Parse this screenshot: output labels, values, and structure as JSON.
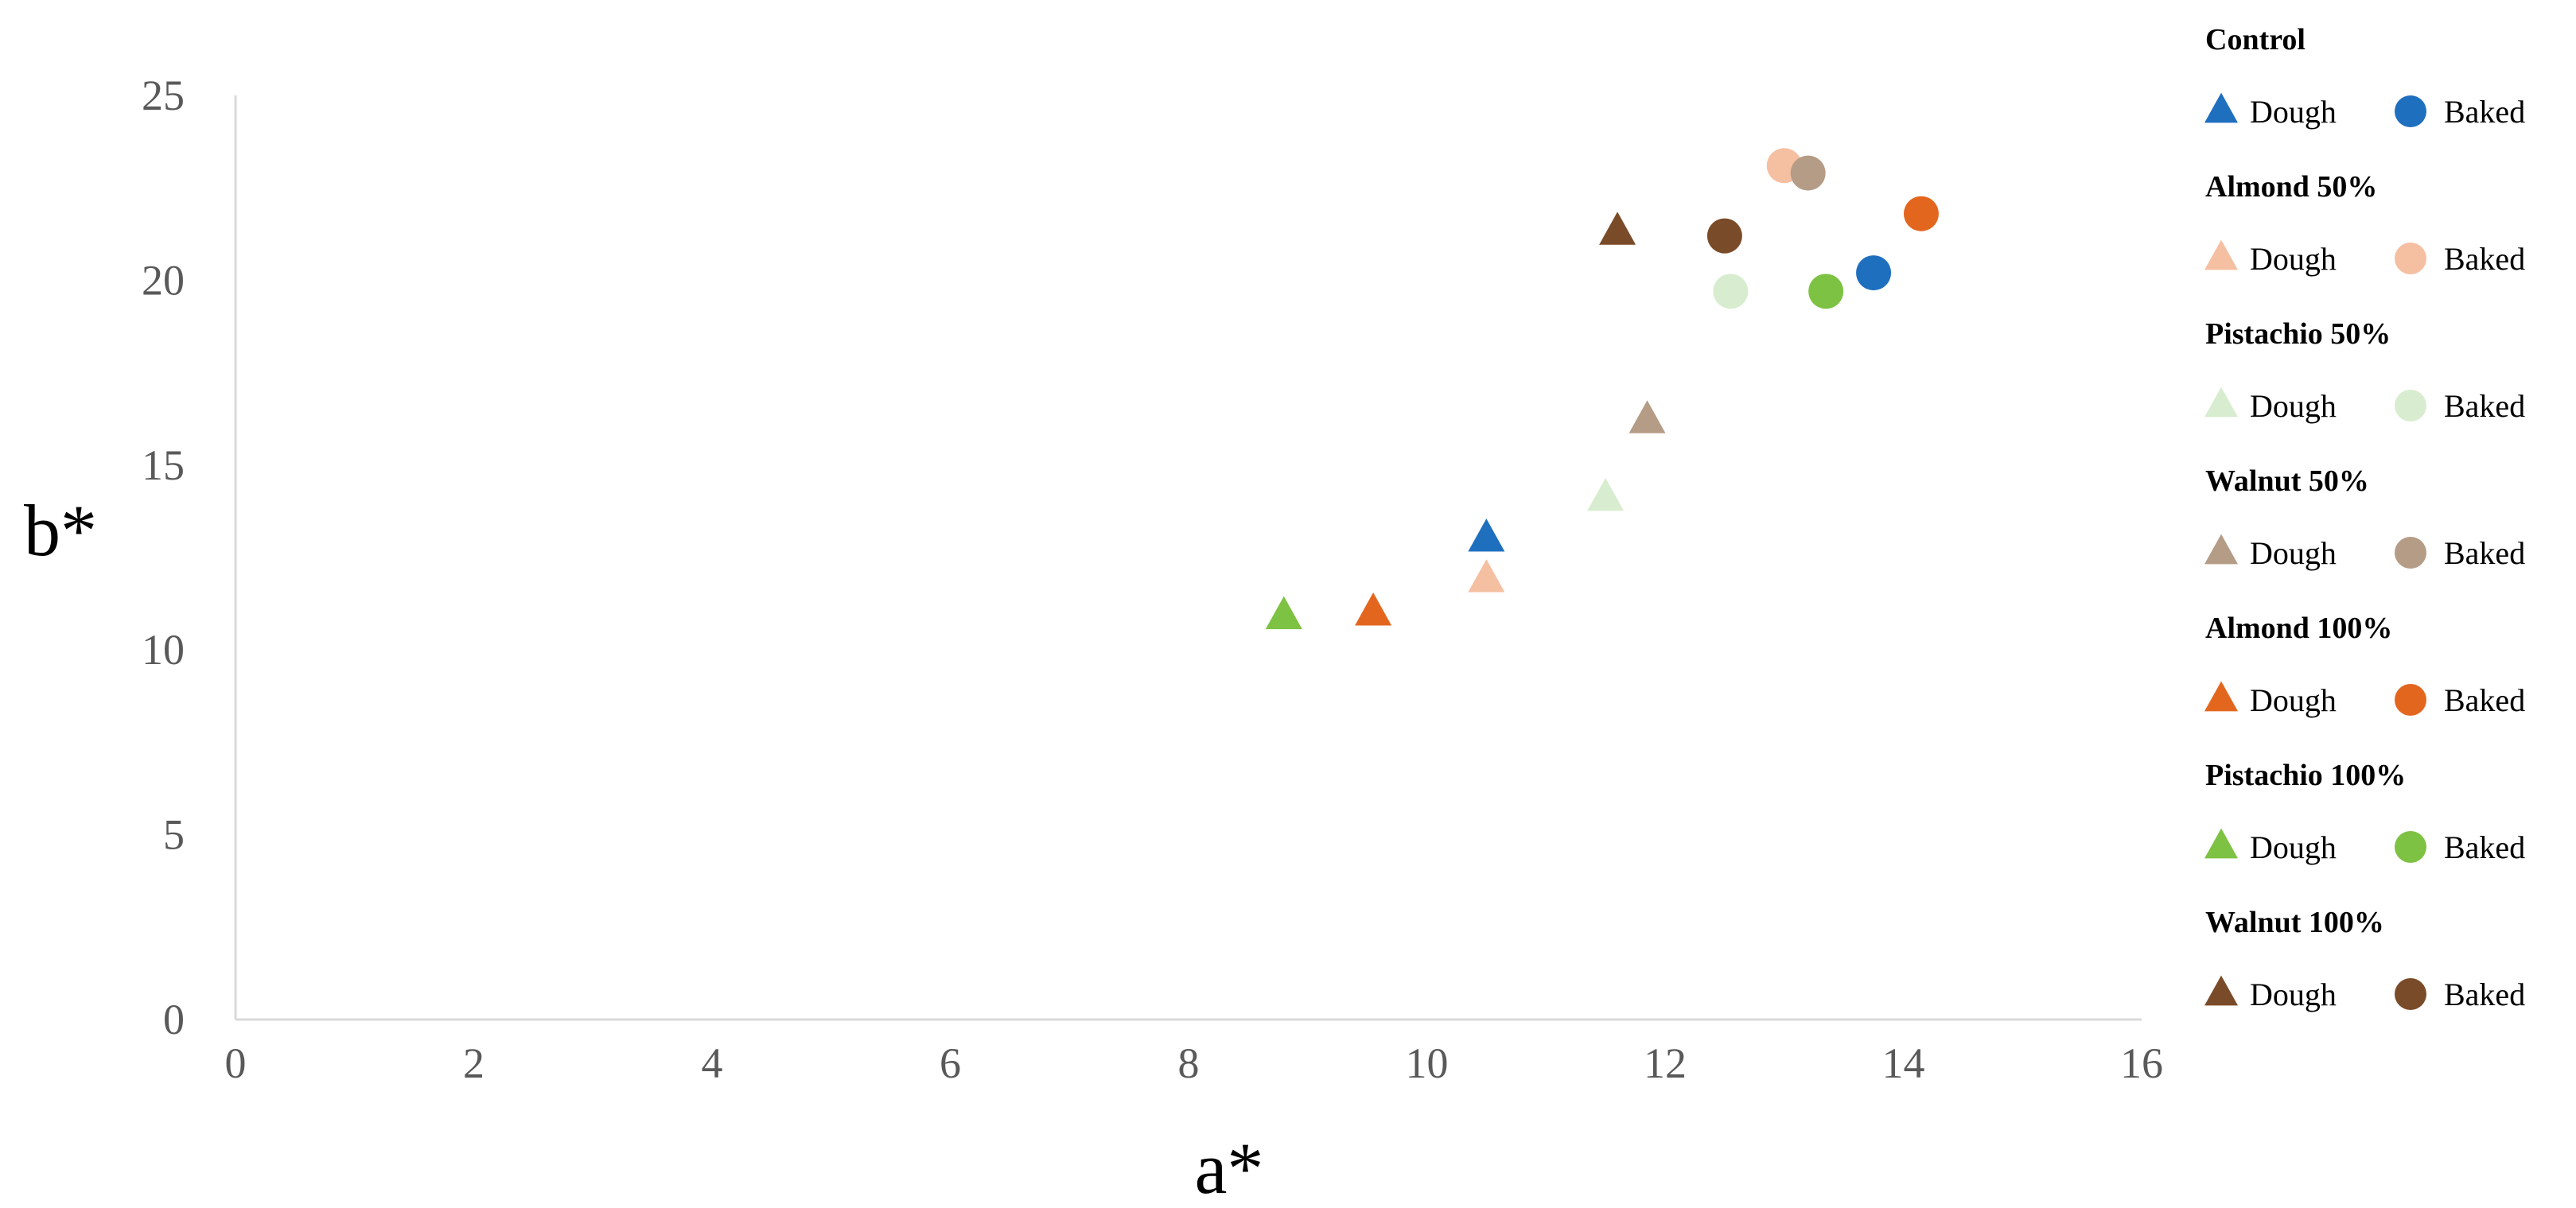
{
  "chart_data": {
    "type": "scatter",
    "xlabel": "a*",
    "ylabel": "b*",
    "xlim": [
      0,
      16
    ],
    "ylim": [
      0,
      25
    ],
    "x_ticks": [
      "0",
      "2",
      "4",
      "6",
      "8",
      "10",
      "12",
      "14",
      "16"
    ],
    "y_ticks": [
      "0",
      "5",
      "10",
      "15",
      "20",
      "25"
    ],
    "grid": false,
    "legend_position": "right",
    "marker_labels": {
      "dough": "Dough",
      "baked": "Baked"
    },
    "groups": [
      {
        "name": "Control",
        "color": "#1F6FBF",
        "dough": {
          "x": 10.5,
          "y": 13.0
        },
        "baked": {
          "x": 13.75,
          "y": 20.2
        }
      },
      {
        "name": "Almond 50%",
        "color": "#F5BFA1",
        "dough": {
          "x": 10.5,
          "y": 11.9
        },
        "baked": {
          "x": 13.0,
          "y": 23.1
        }
      },
      {
        "name": "Pistachio 50%",
        "color": "#D8EDCF",
        "dough": {
          "x": 11.5,
          "y": 14.1
        },
        "baked": {
          "x": 12.55,
          "y": 19.7
        }
      },
      {
        "name": "Walnut 50%",
        "color": "#B59C86",
        "dough": {
          "x": 11.85,
          "y": 16.2
        },
        "baked": {
          "x": 13.2,
          "y": 22.9
        }
      },
      {
        "name": "Almond 100%",
        "color": "#E3661E",
        "dough": {
          "x": 9.55,
          "y": 11.0
        },
        "baked": {
          "x": 14.15,
          "y": 21.8
        }
      },
      {
        "name": "Pistachio 100%",
        "color": "#7DC242",
        "dough": {
          "x": 8.8,
          "y": 10.9
        },
        "baked": {
          "x": 13.35,
          "y": 19.7
        }
      },
      {
        "name": "Walnut 100%",
        "color": "#7A4B28",
        "dough": {
          "x": 11.6,
          "y": 21.3
        },
        "baked": {
          "x": 12.5,
          "y": 21.2
        }
      }
    ]
  }
}
